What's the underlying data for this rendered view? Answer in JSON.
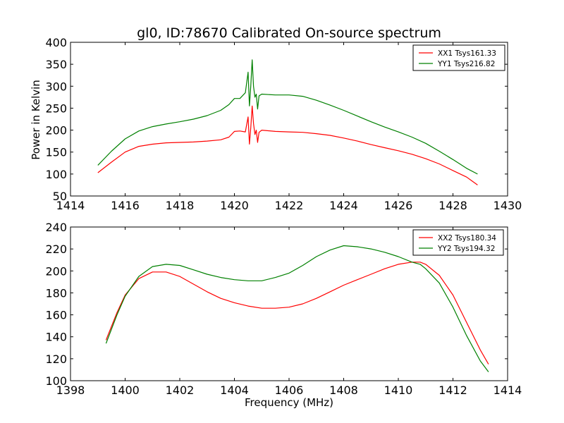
{
  "chart_data": [
    {
      "type": "line",
      "title": "gl0, ID:78670 Calibrated On-source spectrum",
      "xlabel": "",
      "ylabel": "Power in Kelvin",
      "xlim": [
        1414,
        1430
      ],
      "ylim": [
        50,
        400
      ],
      "xticks": [
        1414,
        1416,
        1418,
        1420,
        1422,
        1424,
        1426,
        1428,
        1430
      ],
      "yticks": [
        50,
        100,
        150,
        200,
        250,
        300,
        350,
        400
      ],
      "legend": "top-right",
      "grid": false,
      "series": [
        {
          "name": "XX1 Tsys161.33",
          "color": "#ff0000",
          "x": [
            1415.0,
            1415.5,
            1416.0,
            1416.5,
            1417.0,
            1417.5,
            1418.0,
            1418.5,
            1419.0,
            1419.5,
            1419.8,
            1420.0,
            1420.2,
            1420.4,
            1420.5,
            1420.55,
            1420.6,
            1420.65,
            1420.7,
            1420.75,
            1420.8,
            1420.85,
            1420.9,
            1421.0,
            1421.5,
            1422.0,
            1422.5,
            1423.0,
            1423.5,
            1424.0,
            1424.5,
            1425.0,
            1425.5,
            1426.0,
            1426.5,
            1427.0,
            1427.5,
            1428.0,
            1428.5,
            1428.9
          ],
          "y": [
            103,
            127,
            150,
            163,
            168,
            171,
            172,
            173,
            175,
            178,
            184,
            197,
            198,
            196,
            230,
            168,
            205,
            255,
            215,
            190,
            200,
            172,
            195,
            200,
            197,
            196,
            195,
            192,
            188,
            182,
            175,
            167,
            160,
            153,
            145,
            135,
            123,
            108,
            93,
            75
          ]
        },
        {
          "name": "YY1 Tsys216.82",
          "color": "#008000",
          "x": [
            1415.0,
            1415.5,
            1416.0,
            1416.5,
            1417.0,
            1417.5,
            1418.0,
            1418.5,
            1419.0,
            1419.5,
            1419.8,
            1420.0,
            1420.2,
            1420.4,
            1420.5,
            1420.55,
            1420.6,
            1420.65,
            1420.7,
            1420.75,
            1420.8,
            1420.85,
            1420.9,
            1421.0,
            1421.5,
            1422.0,
            1422.5,
            1423.0,
            1423.5,
            1424.0,
            1424.5,
            1425.0,
            1425.5,
            1426.0,
            1426.5,
            1427.0,
            1427.5,
            1428.0,
            1428.5,
            1428.9
          ],
          "y": [
            120,
            152,
            180,
            198,
            208,
            214,
            219,
            225,
            233,
            245,
            258,
            272,
            272,
            285,
            332,
            255,
            300,
            360,
            300,
            275,
            282,
            248,
            278,
            282,
            280,
            280,
            277,
            268,
            257,
            245,
            232,
            219,
            207,
            196,
            184,
            170,
            152,
            133,
            113,
            100
          ]
        }
      ]
    },
    {
      "type": "line",
      "title": "",
      "xlabel": "Frequency (MHz)",
      "ylabel": "",
      "xlim": [
        1398,
        1414
      ],
      "ylim": [
        100,
        240
      ],
      "xticks": [
        1398,
        1400,
        1402,
        1404,
        1406,
        1408,
        1410,
        1412,
        1414
      ],
      "yticks": [
        100,
        120,
        140,
        160,
        180,
        200,
        220,
        240
      ],
      "legend": "top-right",
      "grid": false,
      "series": [
        {
          "name": "XX2 Tsys180.34",
          "color": "#ff0000",
          "x": [
            1399.3,
            1399.7,
            1400.0,
            1400.5,
            1401.0,
            1401.5,
            1402.0,
            1402.5,
            1403.0,
            1403.5,
            1404.0,
            1404.5,
            1405.0,
            1405.5,
            1406.0,
            1406.5,
            1407.0,
            1407.5,
            1408.0,
            1408.5,
            1409.0,
            1409.5,
            1410.0,
            1410.5,
            1410.8,
            1411.0,
            1411.5,
            1412.0,
            1412.5,
            1413.0,
            1413.3
          ],
          "y": [
            137,
            162,
            178,
            193,
            199,
            199,
            195,
            188,
            181,
            175,
            171,
            168,
            166,
            166,
            167,
            170,
            175,
            181,
            187,
            192,
            197,
            202,
            206,
            208,
            208,
            206,
            196,
            178,
            153,
            128,
            115
          ]
        },
        {
          "name": "YY2 Tsys194.32",
          "color": "#008000",
          "x": [
            1399.3,
            1399.7,
            1400.0,
            1400.5,
            1401.0,
            1401.5,
            1402.0,
            1402.5,
            1403.0,
            1403.5,
            1404.0,
            1404.5,
            1405.0,
            1405.5,
            1406.0,
            1406.5,
            1407.0,
            1407.5,
            1408.0,
            1408.5,
            1409.0,
            1409.5,
            1410.0,
            1410.5,
            1410.8,
            1411.0,
            1411.5,
            1412.0,
            1412.5,
            1413.0,
            1413.3
          ],
          "y": [
            134,
            160,
            177,
            195,
            204,
            206,
            205,
            201,
            197,
            194,
            192,
            191,
            191,
            194,
            198,
            205,
            213,
            219,
            223,
            222,
            220,
            217,
            213,
            208,
            206,
            202,
            189,
            167,
            141,
            118,
            108
          ]
        }
      ]
    }
  ]
}
